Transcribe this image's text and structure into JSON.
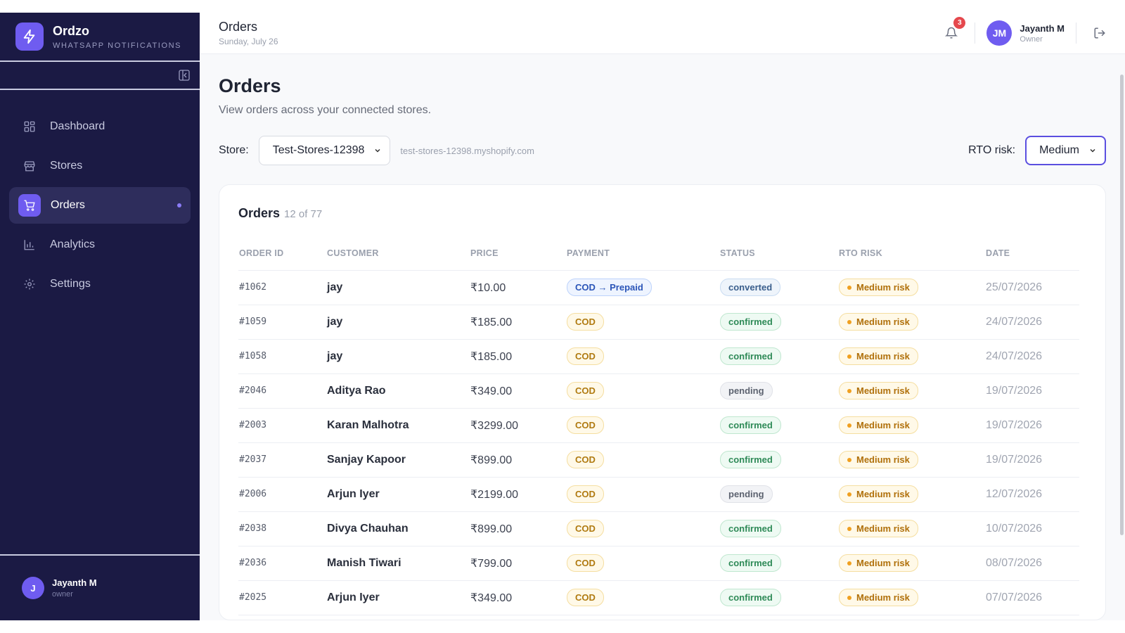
{
  "sidebar": {
    "brand": "Ordzo",
    "tagline": "WHATSAPP NOTIFICATIONS",
    "nav": [
      "Dashboard",
      "Stores",
      "Orders",
      "Analytics",
      "Settings"
    ],
    "user": {
      "initial": "J",
      "name": "Jayanth M",
      "role": "owner"
    }
  },
  "header": {
    "title": "Orders",
    "date": "Sunday, July 26",
    "notifications": "3",
    "user": {
      "initials": "JM",
      "name": "Jayanth M",
      "role": "Owner"
    }
  },
  "page": {
    "title": "Orders",
    "description": "View orders across your connected stores.",
    "store_label": "Store:",
    "store": "Test-Stores-12398",
    "store_domain": "test-stores-12398.myshopify.com",
    "rto_label": "RTO risk:",
    "rto": "Medium"
  },
  "table": {
    "title": "Orders",
    "count": "12 of 77",
    "columns": [
      "ORDER ID",
      "CUSTOMER",
      "PRICE",
      "PAYMENT",
      "STATUS",
      "RTO RISK",
      "DATE"
    ],
    "rows": [
      [
        "#1062",
        "jay",
        "₹10.00",
        "COD → Prepaid",
        "converted",
        "Medium risk",
        "25/07/2026"
      ],
      [
        "#1059",
        "jay",
        "₹185.00",
        "COD",
        "confirmed",
        "Medium risk",
        "24/07/2026"
      ],
      [
        "#1058",
        "jay",
        "₹185.00",
        "COD",
        "confirmed",
        "Medium risk",
        "24/07/2026"
      ],
      [
        "#2046",
        "Aditya Rao",
        "₹349.00",
        "COD",
        "pending",
        "Medium risk",
        "19/07/2026"
      ],
      [
        "#2003",
        "Karan Malhotra",
        "₹3299.00",
        "COD",
        "confirmed",
        "Medium risk",
        "19/07/2026"
      ],
      [
        "#2037",
        "Sanjay Kapoor",
        "₹899.00",
        "COD",
        "confirmed",
        "Medium risk",
        "19/07/2026"
      ],
      [
        "#2006",
        "Arjun Iyer",
        "₹2199.00",
        "COD",
        "pending",
        "Medium risk",
        "12/07/2026"
      ],
      [
        "#2038",
        "Divya Chauhan",
        "₹899.00",
        "COD",
        "confirmed",
        "Medium risk",
        "10/07/2026"
      ],
      [
        "#2036",
        "Manish Tiwari",
        "₹799.00",
        "COD",
        "confirmed",
        "Medium risk",
        "08/07/2026"
      ],
      [
        "#2025",
        "Arjun Iyer",
        "₹349.00",
        "COD",
        "confirmed",
        "Medium risk",
        "07/07/2026"
      ]
    ]
  }
}
